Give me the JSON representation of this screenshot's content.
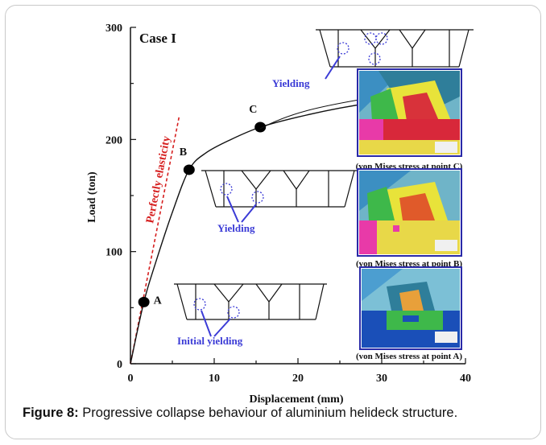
{
  "figure": {
    "caption_label": "Figure 8:",
    "caption_text": " Progressive collapse behaviour of aluminium helideck structure.",
    "case_label": "Case I",
    "elastic_label": "Perfectly elasticity",
    "yield_labels": [
      "Yielding",
      "Yielding",
      "Initial  yielding"
    ],
    "stress_labels": [
      "(von Mises stress at point C)",
      "(von Mises stress at point B)",
      "(von Mises stress at point A)"
    ]
  },
  "chart_data": {
    "type": "line",
    "xlabel": "Displacement (mm)",
    "ylabel": "Load (ton)",
    "xlim": [
      0,
      40
    ],
    "ylim": [
      0,
      300
    ],
    "xticks": [
      0,
      10,
      20,
      30,
      40
    ],
    "yticks": [
      0,
      100,
      200,
      300
    ],
    "series": [
      {
        "values": [
          [
            0,
            0
          ],
          [
            1.6,
            55
          ],
          [
            3,
            90
          ],
          [
            5,
            135
          ],
          [
            7,
            173
          ],
          [
            9,
            188
          ],
          [
            12,
            200
          ],
          [
            15.5,
            211
          ],
          [
            20,
            220
          ],
          [
            25,
            228
          ],
          [
            30,
            234
          ],
          [
            35,
            238
          ]
        ]
      }
    ],
    "elastic_line": [
      [
        0,
        0
      ],
      [
        5.8,
        220
      ]
    ],
    "points": [
      {
        "label": "A",
        "x": 1.6,
        "y": 55
      },
      {
        "label": "B",
        "x": 7,
        "y": 173
      },
      {
        "label": "C",
        "x": 15.5,
        "y": 211
      }
    ]
  }
}
